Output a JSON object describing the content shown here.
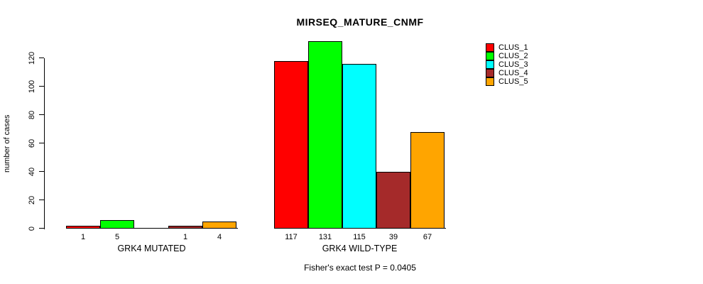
{
  "title": "MIRSEQ_MATURE_CNMF",
  "y_axis_label": "number of cases",
  "footer_note": "Fisher's exact test P = 0.0405",
  "legend": {
    "items": [
      {
        "label": "CLUS_1",
        "color": "#FF0000"
      },
      {
        "label": "CLUS_2",
        "color": "#00FF00"
      },
      {
        "label": "CLUS_3",
        "color": "#00FFFF"
      },
      {
        "label": "CLUS_4",
        "color": "#A52A2A"
      },
      {
        "label": "CLUS_5",
        "color": "#FFA500"
      }
    ]
  },
  "chart_data": {
    "type": "bar",
    "title": "MIRSEQ_MATURE_CNMF",
    "xlabel": "",
    "ylabel": "number of cases",
    "ylim": [
      0,
      131
    ],
    "yticks": [
      0,
      20,
      40,
      60,
      80,
      100,
      120
    ],
    "grid": false,
    "legend_position": "top-right",
    "series_names": [
      "CLUS_1",
      "CLUS_2",
      "CLUS_3",
      "CLUS_4",
      "CLUS_5"
    ],
    "series_colors": [
      "#FF0000",
      "#00FF00",
      "#00FFFF",
      "#A52A2A",
      "#FFA500"
    ],
    "groups": [
      {
        "label": "GRK4 MUTATED",
        "values": [
          1,
          5,
          0,
          1,
          4
        ],
        "value_labels": [
          "1",
          "5",
          "",
          "1",
          "4"
        ]
      },
      {
        "label": "GRK4 WILD-TYPE",
        "values": [
          117,
          131,
          115,
          39,
          67
        ],
        "value_labels": [
          "117",
          "131",
          "115",
          "39",
          "67"
        ]
      }
    ],
    "annotation": "Fisher's exact test P = 0.0405"
  }
}
